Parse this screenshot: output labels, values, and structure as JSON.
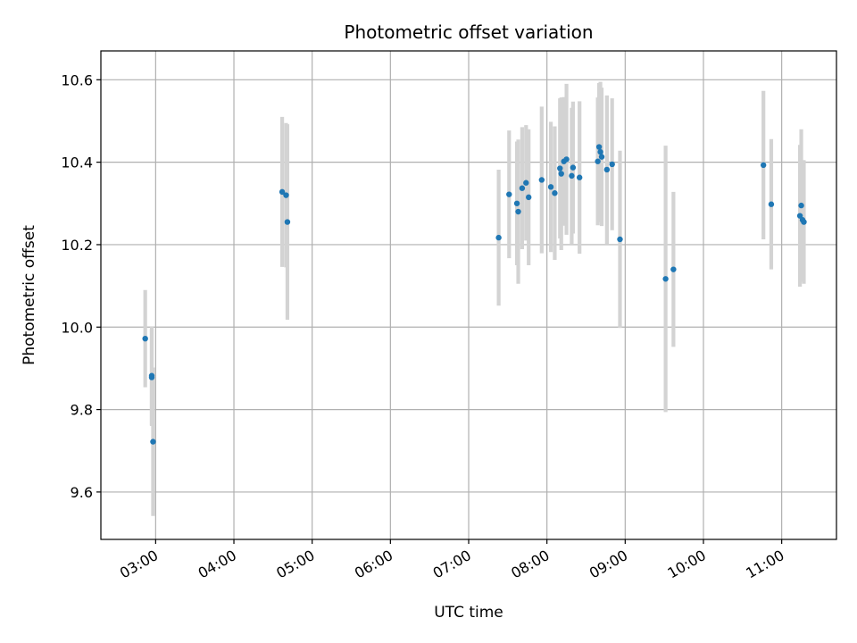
{
  "chart_data": {
    "type": "scatter",
    "title": "Photometric offset variation",
    "xlabel": "UTC time",
    "ylabel": "Photometric offset",
    "x_axis_type": "time",
    "xlim": [
      "02:18",
      "11:42"
    ],
    "ylim": [
      9.485,
      10.67
    ],
    "x_ticks": [
      "03:00",
      "04:00",
      "05:00",
      "06:00",
      "07:00",
      "08:00",
      "09:00",
      "10:00",
      "11:00"
    ],
    "y_ticks": [
      9.6,
      9.8,
      10.0,
      10.2,
      10.4,
      10.6
    ],
    "y_tick_labels": [
      "9.6",
      "9.8",
      "10.0",
      "10.2",
      "10.4",
      "10.6"
    ],
    "grid": true,
    "legend": "none",
    "colors": {
      "point": "#1f77b4",
      "errorbar": "#d3d3d3",
      "grid": "#b0b0b0"
    },
    "series": [
      {
        "points": [
          {
            "x": "02:52",
            "y": 9.972,
            "err": 0.118
          },
          {
            "x": "02:57",
            "y": 9.882,
            "err": 0.12
          },
          {
            "x": "02:57",
            "y": 9.878,
            "err": 0.118
          },
          {
            "x": "02:58",
            "y": 9.722,
            "err": 0.18
          },
          {
            "x": "04:37",
            "y": 10.328,
            "err": 0.182
          },
          {
            "x": "04:40",
            "y": 10.32,
            "err": 0.175
          },
          {
            "x": "04:41",
            "y": 10.255,
            "err": 0.237
          },
          {
            "x": "07:23",
            "y": 10.217,
            "err": 0.165
          },
          {
            "x": "07:31",
            "y": 10.322,
            "err": 0.155
          },
          {
            "x": "07:37",
            "y": 10.3,
            "err": 0.15
          },
          {
            "x": "07:38",
            "y": 10.28,
            "err": 0.175
          },
          {
            "x": "07:41",
            "y": 10.337,
            "err": 0.148
          },
          {
            "x": "07:44",
            "y": 10.35,
            "err": 0.14
          },
          {
            "x": "07:46",
            "y": 10.315,
            "err": 0.165
          },
          {
            "x": "07:56",
            "y": 10.357,
            "err": 0.178
          },
          {
            "x": "08:03",
            "y": 10.34,
            "err": 0.158
          },
          {
            "x": "08:06",
            "y": 10.325,
            "err": 0.162
          },
          {
            "x": "08:10",
            "y": 10.385,
            "err": 0.17
          },
          {
            "x": "08:11",
            "y": 10.372,
            "err": 0.185
          },
          {
            "x": "08:13",
            "y": 10.402,
            "err": 0.156
          },
          {
            "x": "08:15",
            "y": 10.407,
            "err": 0.183
          },
          {
            "x": "08:19",
            "y": 10.367,
            "err": 0.165
          },
          {
            "x": "08:20",
            "y": 10.387,
            "err": 0.16
          },
          {
            "x": "08:25",
            "y": 10.363,
            "err": 0.185
          },
          {
            "x": "08:39",
            "y": 10.402,
            "err": 0.155
          },
          {
            "x": "08:40",
            "y": 10.437,
            "err": 0.155
          },
          {
            "x": "08:41",
            "y": 10.425,
            "err": 0.17
          },
          {
            "x": "08:42",
            "y": 10.413,
            "err": 0.168
          },
          {
            "x": "08:46",
            "y": 10.382,
            "err": 0.18
          },
          {
            "x": "08:50",
            "y": 10.395,
            "err": 0.16
          },
          {
            "x": "08:56",
            "y": 10.213,
            "err": 0.215
          },
          {
            "x": "09:31",
            "y": 10.117,
            "err": 0.323
          },
          {
            "x": "09:37",
            "y": 10.14,
            "err": 0.188
          },
          {
            "x": "10:46",
            "y": 10.393,
            "err": 0.18
          },
          {
            "x": "10:52",
            "y": 10.298,
            "err": 0.158
          },
          {
            "x": "11:14",
            "y": 10.27,
            "err": 0.172
          },
          {
            "x": "11:15",
            "y": 10.295,
            "err": 0.185
          },
          {
            "x": "11:16",
            "y": 10.26,
            "err": 0.145
          },
          {
            "x": "11:17",
            "y": 10.255,
            "err": 0.15
          }
        ]
      }
    ]
  }
}
